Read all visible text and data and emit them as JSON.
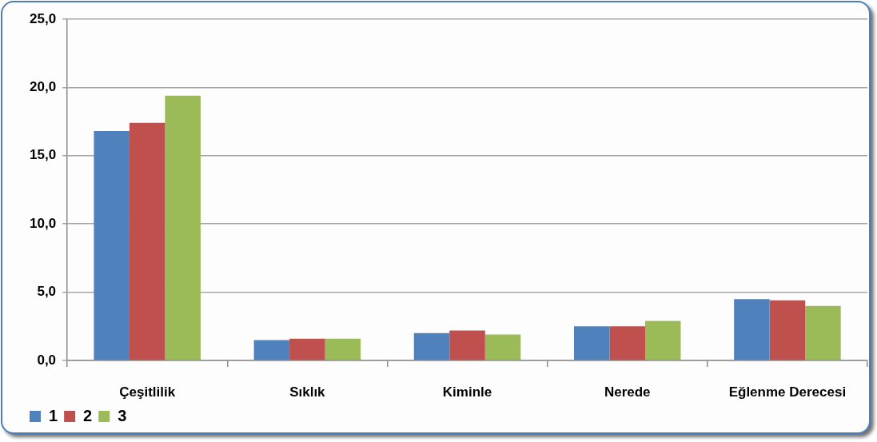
{
  "chart_data": {
    "type": "bar",
    "categories": [
      "Çeşitlilik",
      "Sıklık",
      "Kiminle",
      "Nerede",
      "Eğlenme Derecesi"
    ],
    "series": [
      {
        "name": "1",
        "color": "#4f81bd",
        "values": [
          16.8,
          1.5,
          2.0,
          2.5,
          4.5
        ]
      },
      {
        "name": "2",
        "color": "#c0504d",
        "values": [
          17.4,
          1.6,
          2.2,
          2.5,
          4.4
        ]
      },
      {
        "name": "3",
        "color": "#9bbb59",
        "values": [
          19.4,
          1.6,
          1.9,
          2.9,
          4.0
        ]
      }
    ],
    "ylim": [
      0,
      25
    ],
    "yticks": [
      {
        "value": 0,
        "label": "0,0"
      },
      {
        "value": 5,
        "label": "5,0"
      },
      {
        "value": 10,
        "label": "10,0"
      },
      {
        "value": 15,
        "label": "15,0"
      },
      {
        "value": 20,
        "label": "20,0"
      },
      {
        "value": 25,
        "label": "25,0"
      }
    ],
    "grid": "y",
    "legend": "bottom left"
  }
}
